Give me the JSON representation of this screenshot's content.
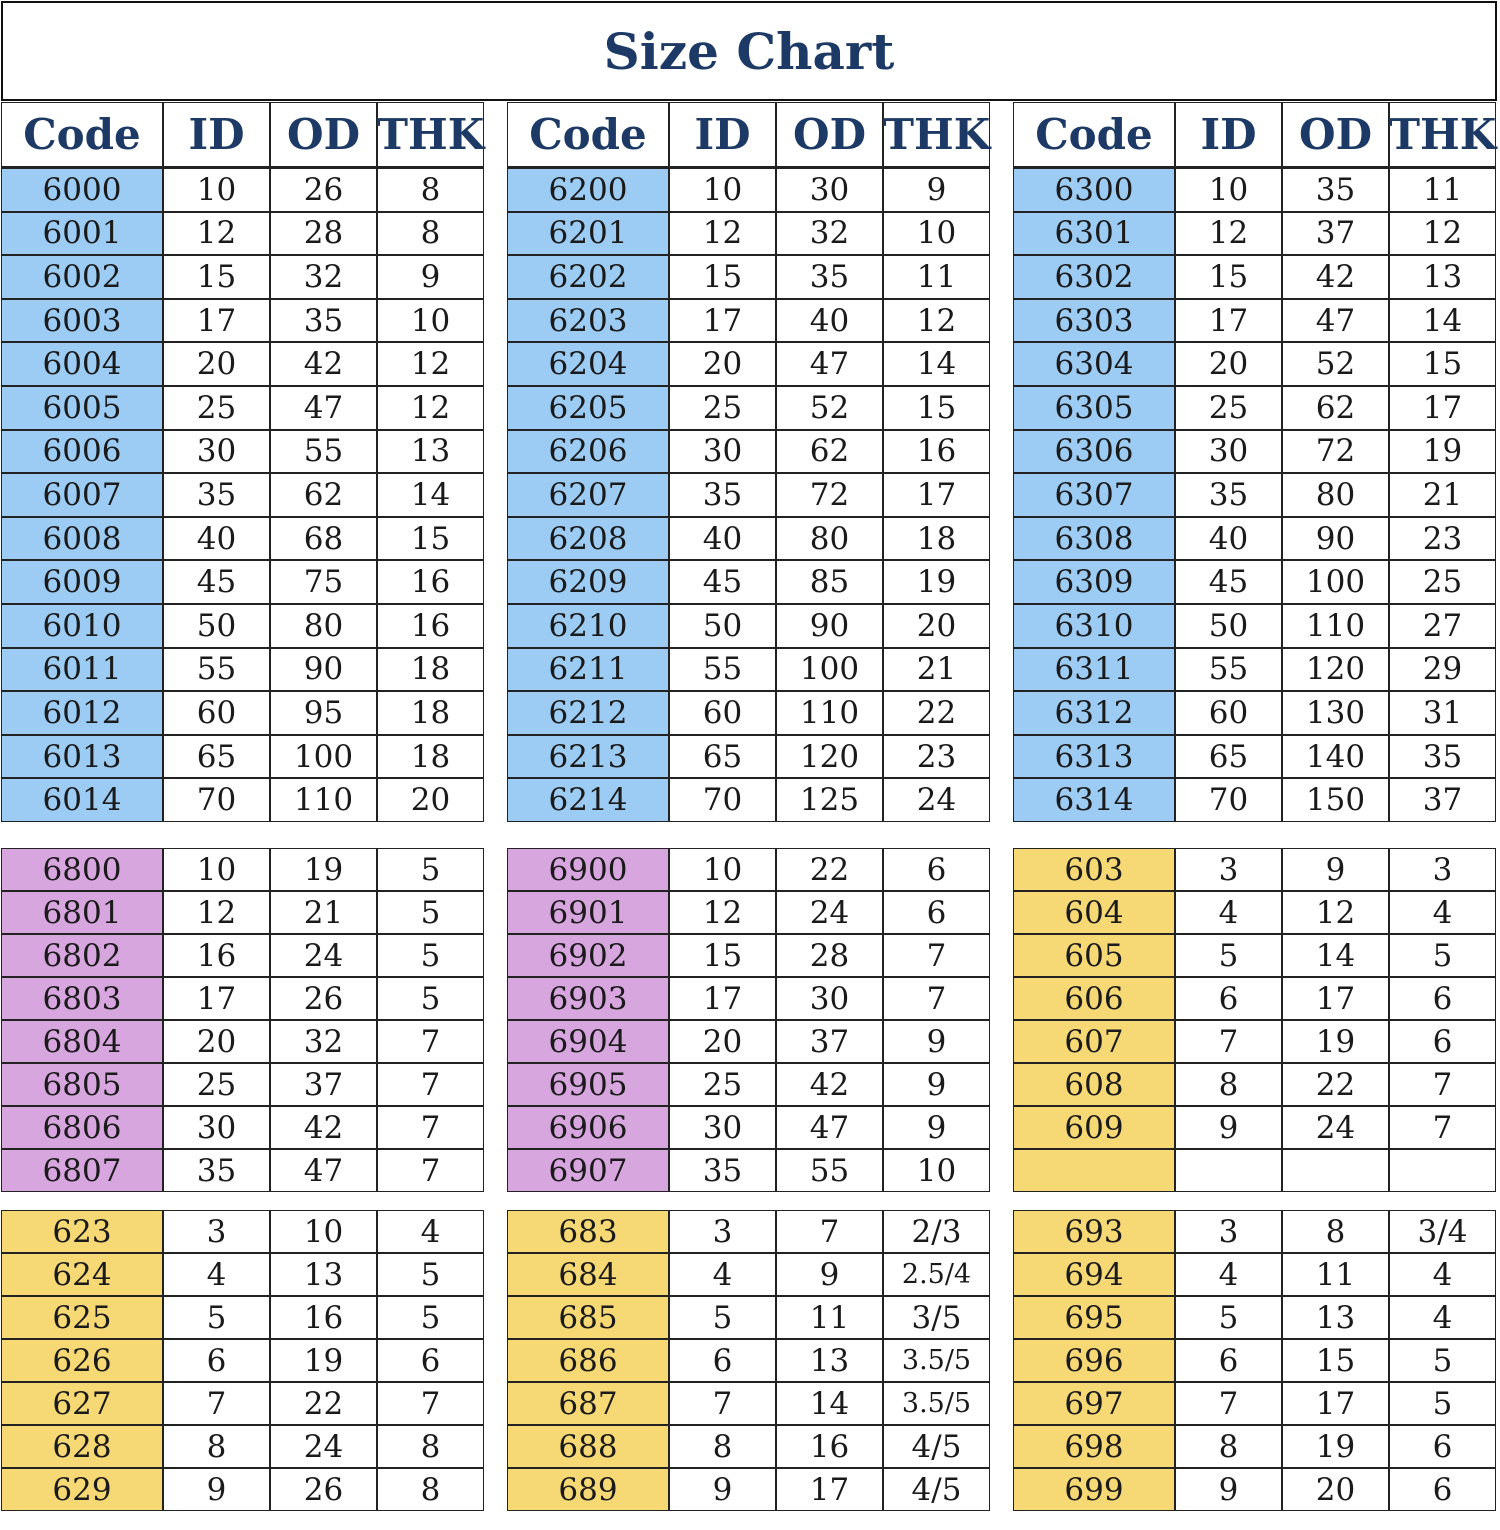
{
  "title": "Size Chart",
  "headers": [
    "Code",
    "ID",
    "OD",
    "THK"
  ],
  "colors": {
    "blue": "#9ccbf4",
    "purple": "#d8a6df",
    "yellow": "#f6d875",
    "title": "#1d3a66"
  },
  "section1": [
    {
      "color": "blue",
      "rows": [
        [
          "6000",
          "10",
          "26",
          "8"
        ],
        [
          "6001",
          "12",
          "28",
          "8"
        ],
        [
          "6002",
          "15",
          "32",
          "9"
        ],
        [
          "6003",
          "17",
          "35",
          "10"
        ],
        [
          "6004",
          "20",
          "42",
          "12"
        ],
        [
          "6005",
          "25",
          "47",
          "12"
        ],
        [
          "6006",
          "30",
          "55",
          "13"
        ],
        [
          "6007",
          "35",
          "62",
          "14"
        ],
        [
          "6008",
          "40",
          "68",
          "15"
        ],
        [
          "6009",
          "45",
          "75",
          "16"
        ],
        [
          "6010",
          "50",
          "80",
          "16"
        ],
        [
          "6011",
          "55",
          "90",
          "18"
        ],
        [
          "6012",
          "60",
          "95",
          "18"
        ],
        [
          "6013",
          "65",
          "100",
          "18"
        ],
        [
          "6014",
          "70",
          "110",
          "20"
        ]
      ]
    },
    {
      "color": "blue",
      "rows": [
        [
          "6200",
          "10",
          "30",
          "9"
        ],
        [
          "6201",
          "12",
          "32",
          "10"
        ],
        [
          "6202",
          "15",
          "35",
          "11"
        ],
        [
          "6203",
          "17",
          "40",
          "12"
        ],
        [
          "6204",
          "20",
          "47",
          "14"
        ],
        [
          "6205",
          "25",
          "52",
          "15"
        ],
        [
          "6206",
          "30",
          "62",
          "16"
        ],
        [
          "6207",
          "35",
          "72",
          "17"
        ],
        [
          "6208",
          "40",
          "80",
          "18"
        ],
        [
          "6209",
          "45",
          "85",
          "19"
        ],
        [
          "6210",
          "50",
          "90",
          "20"
        ],
        [
          "6211",
          "55",
          "100",
          "21"
        ],
        [
          "6212",
          "60",
          "110",
          "22"
        ],
        [
          "6213",
          "65",
          "120",
          "23"
        ],
        [
          "6214",
          "70",
          "125",
          "24"
        ]
      ]
    },
    {
      "color": "blue",
      "rows": [
        [
          "6300",
          "10",
          "35",
          "11"
        ],
        [
          "6301",
          "12",
          "37",
          "12"
        ],
        [
          "6302",
          "15",
          "42",
          "13"
        ],
        [
          "6303",
          "17",
          "47",
          "14"
        ],
        [
          "6304",
          "20",
          "52",
          "15"
        ],
        [
          "6305",
          "25",
          "62",
          "17"
        ],
        [
          "6306",
          "30",
          "72",
          "19"
        ],
        [
          "6307",
          "35",
          "80",
          "21"
        ],
        [
          "6308",
          "40",
          "90",
          "23"
        ],
        [
          "6309",
          "45",
          "100",
          "25"
        ],
        [
          "6310",
          "50",
          "110",
          "27"
        ],
        [
          "6311",
          "55",
          "120",
          "29"
        ],
        [
          "6312",
          "60",
          "130",
          "31"
        ],
        [
          "6313",
          "65",
          "140",
          "35"
        ],
        [
          "6314",
          "70",
          "150",
          "37"
        ]
      ]
    }
  ],
  "section2": [
    {
      "color": "purple",
      "rows": [
        [
          "6800",
          "10",
          "19",
          "5"
        ],
        [
          "6801",
          "12",
          "21",
          "5"
        ],
        [
          "6802",
          "16",
          "24",
          "5"
        ],
        [
          "6803",
          "17",
          "26",
          "5"
        ],
        [
          "6804",
          "20",
          "32",
          "7"
        ],
        [
          "6805",
          "25",
          "37",
          "7"
        ],
        [
          "6806",
          "30",
          "42",
          "7"
        ],
        [
          "6807",
          "35",
          "47",
          "7"
        ]
      ]
    },
    {
      "color": "purple",
      "rows": [
        [
          "6900",
          "10",
          "22",
          "6"
        ],
        [
          "6901",
          "12",
          "24",
          "6"
        ],
        [
          "6902",
          "15",
          "28",
          "7"
        ],
        [
          "6903",
          "17",
          "30",
          "7"
        ],
        [
          "6904",
          "20",
          "37",
          "9"
        ],
        [
          "6905",
          "25",
          "42",
          "9"
        ],
        [
          "6906",
          "30",
          "47",
          "9"
        ],
        [
          "6907",
          "35",
          "55",
          "10"
        ]
      ]
    },
    {
      "color": "yellow",
      "rows": [
        [
          "603",
          "3",
          "9",
          "3"
        ],
        [
          "604",
          "4",
          "12",
          "4"
        ],
        [
          "605",
          "5",
          "14",
          "5"
        ],
        [
          "606",
          "6",
          "17",
          "6"
        ],
        [
          "607",
          "7",
          "19",
          "6"
        ],
        [
          "608",
          "8",
          "22",
          "7"
        ],
        [
          "609",
          "9",
          "24",
          "7"
        ],
        [
          "",
          "",
          "",
          ""
        ]
      ]
    }
  ],
  "section3": [
    {
      "color": "yellow",
      "rows": [
        [
          "623",
          "3",
          "10",
          "4"
        ],
        [
          "624",
          "4",
          "13",
          "5"
        ],
        [
          "625",
          "5",
          "16",
          "5"
        ],
        [
          "626",
          "6",
          "19",
          "6"
        ],
        [
          "627",
          "7",
          "22",
          "7"
        ],
        [
          "628",
          "8",
          "24",
          "8"
        ],
        [
          "629",
          "9",
          "26",
          "8"
        ]
      ]
    },
    {
      "color": "yellow",
      "rows": [
        [
          "683",
          "3",
          "7",
          "2/3"
        ],
        [
          "684",
          "4",
          "9",
          "2.5/4"
        ],
        [
          "685",
          "5",
          "11",
          "3/5"
        ],
        [
          "686",
          "6",
          "13",
          "3.5/5"
        ],
        [
          "687",
          "7",
          "14",
          "3.5/5"
        ],
        [
          "688",
          "8",
          "16",
          "4/5"
        ],
        [
          "689",
          "9",
          "17",
          "4/5"
        ]
      ]
    },
    {
      "color": "yellow",
      "rows": [
        [
          "693",
          "3",
          "8",
          "3/4"
        ],
        [
          "694",
          "4",
          "11",
          "4"
        ],
        [
          "695",
          "5",
          "13",
          "4"
        ],
        [
          "696",
          "6",
          "15",
          "5"
        ],
        [
          "697",
          "7",
          "17",
          "5"
        ],
        [
          "698",
          "8",
          "19",
          "6"
        ],
        [
          "699",
          "9",
          "20",
          "6"
        ]
      ]
    }
  ]
}
